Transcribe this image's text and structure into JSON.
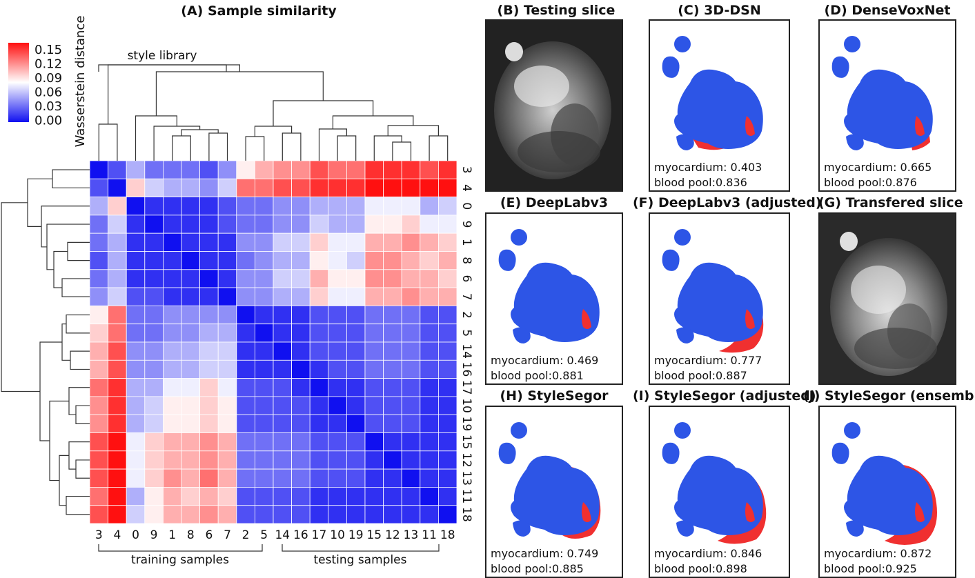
{
  "figure": {
    "panel_a_title": "(A) Sample similarity",
    "colorbar_label": "Wasserstein distance",
    "style_library_label": "style library",
    "training_label": "training samples",
    "testing_label": "testing samples"
  },
  "chart_data": {
    "type": "heatmap",
    "title": "(A) Sample similarity",
    "colorbar": {
      "label": "Wasserstein distance",
      "ticks": [
        "0.15",
        "0.12",
        "0.09",
        "0.06",
        "0.03",
        "0.00"
      ],
      "range": [
        0,
        0.15
      ],
      "colors": {
        "low": "#1010f0",
        "mid": "#ffffff",
        "high": "#ff1010"
      }
    },
    "col_labels": [
      "3",
      "4",
      "0",
      "9",
      "1",
      "8",
      "6",
      "7",
      "2",
      "5",
      "14",
      "16",
      "17",
      "10",
      "19",
      "15",
      "12",
      "13",
      "11",
      "18"
    ],
    "row_labels": [
      "3",
      "4",
      "0",
      "9",
      "1",
      "8",
      "6",
      "7",
      "2",
      "5",
      "14",
      "16",
      "17",
      "10",
      "19",
      "15",
      "12",
      "13",
      "11",
      "18"
    ],
    "values": [
      [
        0.0,
        0.02,
        0.05,
        0.03,
        0.03,
        0.03,
        0.02,
        0.04,
        0.08,
        0.1,
        0.11,
        0.11,
        0.13,
        0.12,
        0.12,
        0.14,
        0.14,
        0.14,
        0.13,
        0.14
      ],
      [
        0.02,
        0.0,
        0.09,
        0.06,
        0.05,
        0.05,
        0.04,
        0.06,
        0.12,
        0.12,
        0.13,
        0.13,
        0.14,
        0.14,
        0.14,
        0.15,
        0.15,
        0.15,
        0.15,
        0.15
      ],
      [
        0.05,
        0.09,
        0.0,
        0.01,
        0.01,
        0.01,
        0.01,
        0.02,
        0.03,
        0.03,
        0.04,
        0.04,
        0.05,
        0.05,
        0.05,
        0.07,
        0.07,
        0.07,
        0.05,
        0.06
      ],
      [
        0.03,
        0.06,
        0.01,
        0.0,
        0.01,
        0.01,
        0.01,
        0.02,
        0.03,
        0.03,
        0.04,
        0.04,
        0.06,
        0.05,
        0.05,
        0.08,
        0.08,
        0.09,
        0.07,
        0.07
      ],
      [
        0.03,
        0.05,
        0.01,
        0.01,
        0.0,
        0.01,
        0.01,
        0.01,
        0.04,
        0.04,
        0.06,
        0.06,
        0.09,
        0.07,
        0.07,
        0.1,
        0.1,
        0.11,
        0.1,
        0.09
      ],
      [
        0.02,
        0.05,
        0.01,
        0.01,
        0.01,
        0.0,
        0.01,
        0.01,
        0.03,
        0.04,
        0.05,
        0.05,
        0.08,
        0.07,
        0.06,
        0.11,
        0.11,
        0.1,
        0.09,
        0.1
      ],
      [
        0.03,
        0.05,
        0.01,
        0.01,
        0.01,
        0.01,
        0.0,
        0.01,
        0.04,
        0.04,
        0.06,
        0.06,
        0.1,
        0.08,
        0.08,
        0.11,
        0.11,
        0.1,
        0.1,
        0.09
      ],
      [
        0.04,
        0.06,
        0.02,
        0.02,
        0.01,
        0.01,
        0.01,
        0.0,
        0.04,
        0.04,
        0.05,
        0.05,
        0.09,
        0.07,
        0.07,
        0.1,
        0.1,
        0.11,
        0.1,
        0.1
      ],
      [
        0.08,
        0.12,
        0.03,
        0.03,
        0.04,
        0.04,
        0.04,
        0.04,
        0.0,
        0.01,
        0.01,
        0.01,
        0.02,
        0.02,
        0.02,
        0.03,
        0.03,
        0.03,
        0.02,
        0.02
      ],
      [
        0.09,
        0.12,
        0.03,
        0.03,
        0.04,
        0.04,
        0.05,
        0.05,
        0.01,
        0.0,
        0.01,
        0.01,
        0.02,
        0.02,
        0.02,
        0.03,
        0.03,
        0.03,
        0.02,
        0.02
      ],
      [
        0.1,
        0.13,
        0.04,
        0.04,
        0.05,
        0.05,
        0.06,
        0.06,
        0.01,
        0.01,
        0.0,
        0.01,
        0.02,
        0.02,
        0.02,
        0.03,
        0.03,
        0.03,
        0.02,
        0.02
      ],
      [
        0.1,
        0.13,
        0.04,
        0.04,
        0.05,
        0.05,
        0.06,
        0.06,
        0.01,
        0.01,
        0.01,
        0.0,
        0.01,
        0.02,
        0.02,
        0.03,
        0.03,
        0.03,
        0.02,
        0.02
      ],
      [
        0.12,
        0.14,
        0.05,
        0.05,
        0.07,
        0.07,
        0.09,
        0.07,
        0.02,
        0.02,
        0.02,
        0.01,
        0.0,
        0.01,
        0.01,
        0.02,
        0.02,
        0.02,
        0.01,
        0.01
      ],
      [
        0.11,
        0.14,
        0.05,
        0.06,
        0.08,
        0.08,
        0.09,
        0.08,
        0.02,
        0.02,
        0.02,
        0.02,
        0.01,
        0.0,
        0.01,
        0.02,
        0.02,
        0.02,
        0.01,
        0.01
      ],
      [
        0.11,
        0.14,
        0.05,
        0.06,
        0.08,
        0.08,
        0.09,
        0.08,
        0.02,
        0.02,
        0.02,
        0.02,
        0.01,
        0.01,
        0.0,
        0.02,
        0.02,
        0.02,
        0.01,
        0.01
      ],
      [
        0.13,
        0.15,
        0.07,
        0.09,
        0.1,
        0.1,
        0.11,
        0.1,
        0.03,
        0.03,
        0.03,
        0.03,
        0.02,
        0.02,
        0.02,
        0.0,
        0.01,
        0.01,
        0.01,
        0.01
      ],
      [
        0.13,
        0.15,
        0.07,
        0.09,
        0.1,
        0.1,
        0.11,
        0.1,
        0.03,
        0.03,
        0.03,
        0.03,
        0.02,
        0.02,
        0.02,
        0.01,
        0.0,
        0.01,
        0.01,
        0.01
      ],
      [
        0.13,
        0.15,
        0.07,
        0.09,
        0.11,
        0.1,
        0.12,
        0.1,
        0.03,
        0.03,
        0.03,
        0.03,
        0.02,
        0.02,
        0.02,
        0.01,
        0.01,
        0.0,
        0.01,
        0.01
      ],
      [
        0.12,
        0.15,
        0.05,
        0.08,
        0.1,
        0.09,
        0.1,
        0.09,
        0.02,
        0.02,
        0.02,
        0.02,
        0.01,
        0.01,
        0.01,
        0.01,
        0.01,
        0.01,
        0.0,
        0.01
      ],
      [
        0.13,
        0.15,
        0.06,
        0.08,
        0.1,
        0.1,
        0.11,
        0.1,
        0.02,
        0.02,
        0.02,
        0.02,
        0.01,
        0.01,
        0.01,
        0.01,
        0.01,
        0.01,
        0.01,
        0.0
      ]
    ]
  },
  "panels": [
    {
      "title": "(B) Testing slice",
      "kind": "image"
    },
    {
      "title": "(C) 3D-DSN",
      "kind": "seg",
      "myocardium": "myocardium: 0.403",
      "blood_pool": "blood pool:0.836"
    },
    {
      "title": "(D) DenseVoxNet",
      "kind": "seg",
      "myocardium": "myocardium: 0.665",
      "blood_pool": "blood pool:0.876"
    },
    {
      "title": "(E) DeepLabv3",
      "kind": "seg",
      "myocardium": "myocardium: 0.469",
      "blood_pool": "blood pool:0.881"
    },
    {
      "title": "(F) DeepLabv3 (adjusted)",
      "kind": "seg",
      "myocardium": "myocardium: 0.777",
      "blood_pool": "blood pool:0.887"
    },
    {
      "title": "(G) Transfered slice",
      "kind": "image"
    },
    {
      "title": "(H) StyleSegor",
      "kind": "seg",
      "myocardium": "myocardium: 0.749",
      "blood_pool": "blood pool:0.885"
    },
    {
      "title": "(I) StyleSegor (adjusted)",
      "kind": "seg",
      "myocardium": "myocardium: 0.846",
      "blood_pool": "blood pool:0.898"
    },
    {
      "title": "(J) StyleSegor (ensemble)",
      "kind": "seg",
      "myocardium": "myocardium: 0.872",
      "blood_pool": "blood pool:0.925"
    }
  ],
  "colors": {
    "myocardium": "#f03030",
    "blood_pool": "#2d55e6",
    "line": "#333333"
  }
}
